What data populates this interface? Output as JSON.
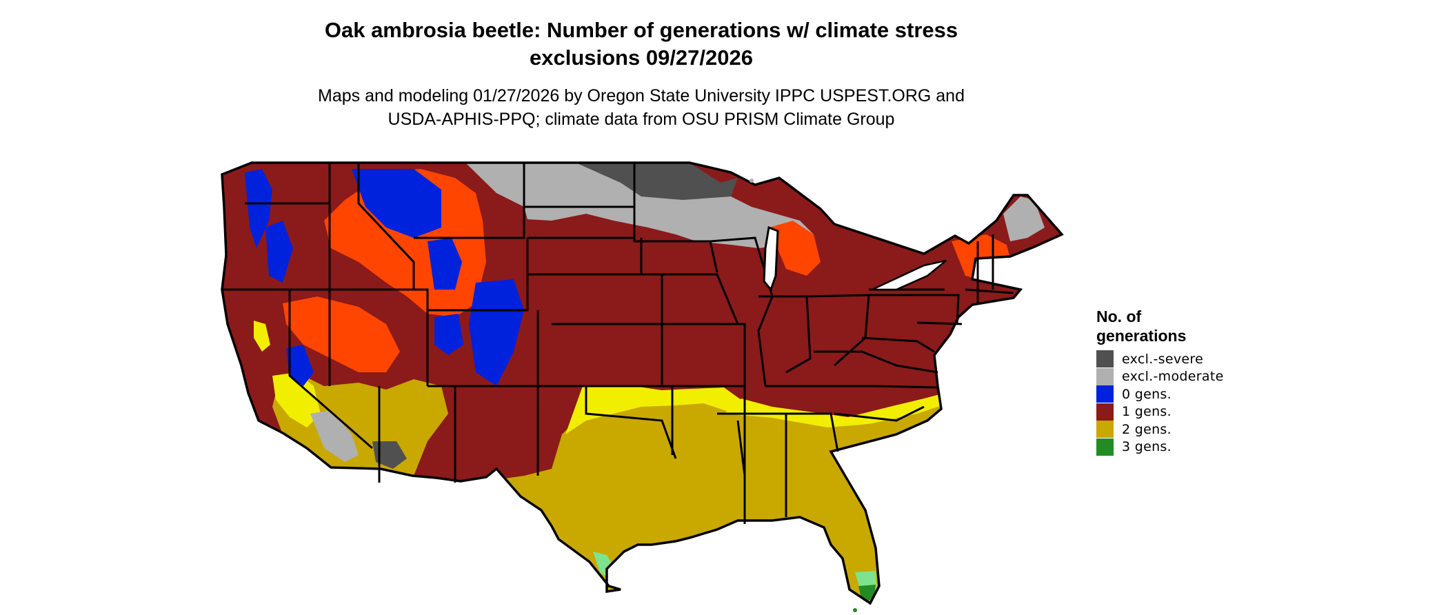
{
  "header": {
    "title_line1": "Oak ambrosia beetle: Number of generations w/ climate stress",
    "title_line2": "exclusions 09/27/2026",
    "subtitle_line1": "Maps and modeling 01/27/2026 by Oregon State University IPPC USPEST.ORG and",
    "subtitle_line2": "USDA-APHIS-PPQ; climate data from OSU PRISM Climate Group"
  },
  "legend": {
    "title_line1": "No. of",
    "title_line2": "generations",
    "items": [
      {
        "label": "excl.-severe",
        "color": "#505050"
      },
      {
        "label": "excl.-moderate",
        "color": "#b0b0b0"
      },
      {
        "label": "0 gens.",
        "color": "#0022dd"
      },
      {
        "label": "1 gens.",
        "color": "#8b1a1a"
      },
      {
        "label": "2 gens.",
        "color": "#c9a800"
      },
      {
        "label": "3 gens.",
        "color": "#238b23"
      }
    ]
  },
  "map_colors": {
    "one_gen": "#8b1a1a",
    "two_gen": "#c9a800",
    "two_gen_light": "#f2ee00",
    "three_gen": "#238b23",
    "three_gen_light": "#7ee38c",
    "zero_gen": "#0022dd",
    "orange_transition": "#ff4500",
    "excl_moderate": "#b0b0b0",
    "excl_severe": "#505050",
    "border": "#000000"
  }
}
